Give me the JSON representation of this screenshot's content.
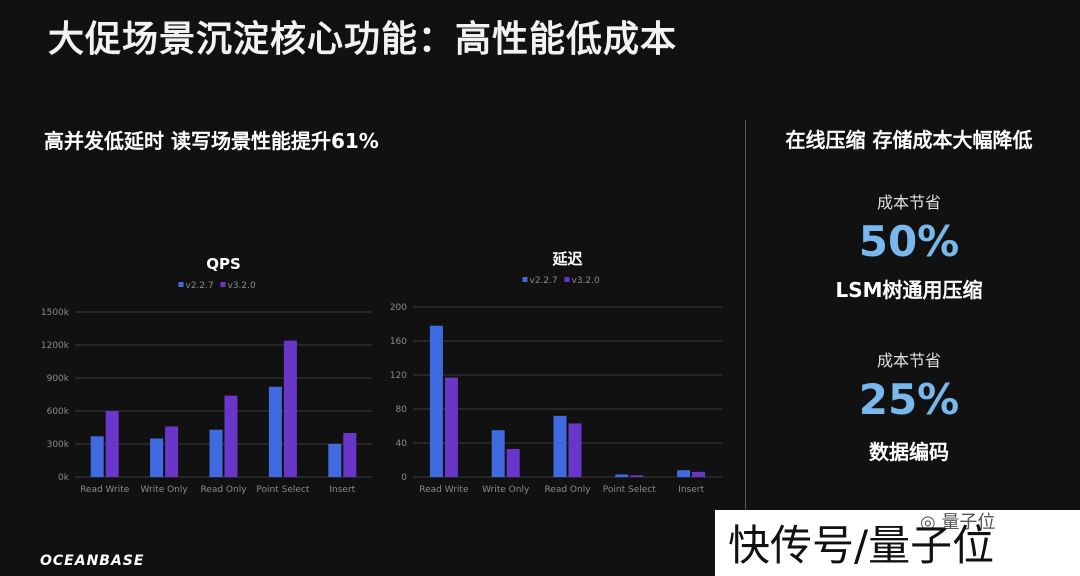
{
  "header": {
    "title": "大促场景沉淀核心功能：高性能低成本"
  },
  "left": {
    "heading": "高并发低延时  读写场景性能提升61%"
  },
  "colors": {
    "v227": "#3f6ae0",
    "v320": "#6a35c9",
    "accent": "#79b8ec"
  },
  "chart_data": [
    {
      "type": "bar",
      "title": "QPS",
      "categories": [
        "Read Write",
        "Write Only",
        "Read Only",
        "Point Select",
        "Insert"
      ],
      "series": [
        {
          "name": "v2.2.7",
          "values": [
            370,
            350,
            430,
            820,
            300
          ]
        },
        {
          "name": "v3.2.0",
          "values": [
            600,
            460,
            740,
            1240,
            400
          ]
        }
      ],
      "ylim": [
        0,
        1500
      ],
      "yticks": [
        "0k",
        "300k",
        "600k",
        "900k",
        "1200k",
        "1500k"
      ],
      "xlabel": "",
      "ylabel": "",
      "grid": true,
      "legend": "top-center"
    },
    {
      "type": "bar",
      "title": "延迟",
      "categories": [
        "Read Write",
        "Write Only",
        "Read Only",
        "Point Select",
        "Insert"
      ],
      "series": [
        {
          "name": "v2.2.7",
          "values": [
            178,
            55,
            72,
            3,
            8
          ]
        },
        {
          "name": "v3.2.0",
          "values": [
            117,
            33,
            63,
            2,
            6
          ]
        }
      ],
      "ylim": [
        0,
        200
      ],
      "yticks": [
        "0",
        "40",
        "80",
        "120",
        "160",
        "200"
      ],
      "xlabel": "",
      "ylabel": "",
      "grid": true,
      "legend": "top-center"
    }
  ],
  "right": {
    "heading": "在线压缩  存储成本大幅降低",
    "stats": [
      {
        "label": "成本节省",
        "value": "50%",
        "desc": "LSM树通用压缩"
      },
      {
        "label": "成本节省",
        "value": "25%",
        "desc": "数据编码"
      }
    ]
  },
  "footer": {
    "logo": "OCEANBASE",
    "watermark": "快传号/量子位",
    "wx_text": "量子位"
  }
}
